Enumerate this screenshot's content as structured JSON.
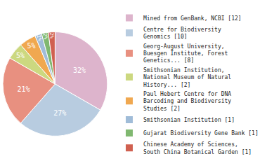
{
  "chart_data": {
    "type": "pie",
    "categories": [
      "Mined from GenBank, NCBI [12]",
      "Centre for Biodiversity\nGenomics [10]",
      "Georg-August University,\nBuesgen Institute, Forest\nGenetics... [8]",
      "Smithsonian Institution,\nNational Museum of Natural\nHistory... [2]",
      "Paul Hebert Centre for DNA\nBarcoding and Biodiversity\nStudies [2]",
      "Smithsonian Institution [1]",
      "Gujarat Biodiversity Gene Bank [1]",
      "Chinese Academy of Sciences,\nSouth China Botanical Garden [1]"
    ],
    "values": [
      32,
      27,
      21,
      5,
      5,
      2,
      2,
      2
    ],
    "value_labels": [
      "32%",
      "27%",
      "21%",
      "5%",
      "5%",
      "2%",
      "2%",
      "2%"
    ],
    "colors": [
      "#ddb4cc",
      "#b8cce0",
      "#e89080",
      "#ccd880",
      "#f0a850",
      "#a0bcd8",
      "#80b870",
      "#d06050"
    ],
    "data_labels": true,
    "legend": "right"
  }
}
